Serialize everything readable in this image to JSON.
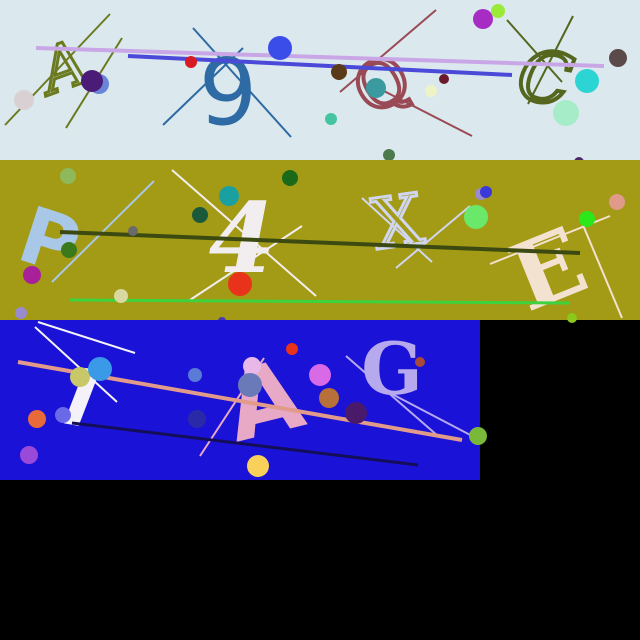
{
  "canvas": {
    "background": "#000000"
  },
  "panels": [
    {
      "name": "panel-1",
      "background": "#dbe9ef",
      "characters": [
        "A",
        "9",
        "Q",
        "C"
      ],
      "character_colors": [
        "#6b7a1e",
        "#2e6aa3",
        "#9a4a55",
        "#55661e"
      ]
    },
    {
      "name": "panel-2",
      "background": "#a39a16",
      "characters": [
        "P",
        "4",
        "X",
        "E"
      ],
      "character_colors": [
        "#a9c8e8",
        "#f2eef0",
        "#d0d6ef",
        "#f4e2d0"
      ]
    },
    {
      "name": "panel-3",
      "background": "#1a12d6",
      "characters": [
        "I",
        "A",
        "G"
      ],
      "character_colors": [
        "#f4f2f8",
        "#e7a9c6",
        "#b6a9ee"
      ]
    }
  ]
}
